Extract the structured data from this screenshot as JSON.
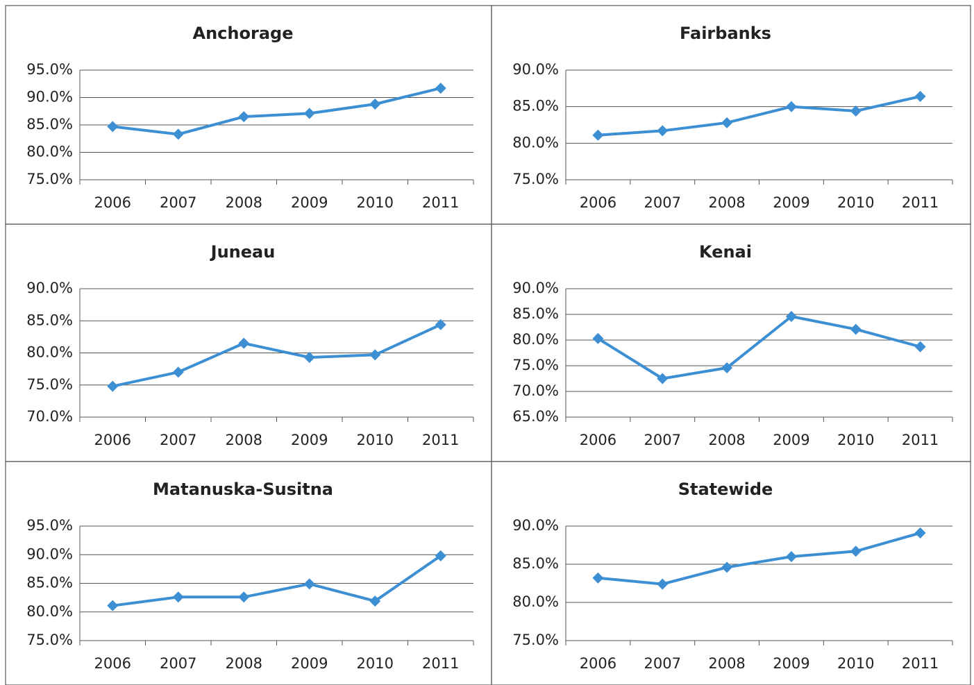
{
  "chart_data": [
    {
      "type": "line",
      "title": "Anchorage",
      "categories": [
        "2006",
        "2007",
        "2008",
        "2009",
        "2010",
        "2011"
      ],
      "values": [
        84.7,
        83.3,
        86.5,
        87.1,
        88.8,
        91.7
      ],
      "color": "#3d8fd4",
      "grid": true,
      "ylim": [
        75,
        95
      ],
      "yticks": [
        {
          "value": 75,
          "label": "75.0%"
        },
        {
          "value": 80,
          "label": "80.0%"
        },
        {
          "value": 85,
          "label": "85.0%"
        },
        {
          "value": 90,
          "label": "90.0%"
        },
        {
          "value": 95,
          "label": "95.0%"
        }
      ]
    },
    {
      "type": "line",
      "title": "Fairbanks",
      "categories": [
        "2006",
        "2007",
        "2008",
        "2009",
        "2010",
        "2011"
      ],
      "values": [
        81.1,
        81.7,
        82.8,
        85.0,
        84.4,
        86.4
      ],
      "color": "#3d8fd4",
      "grid": true,
      "ylim": [
        75,
        90
      ],
      "yticks": [
        {
          "value": 75,
          "label": "75.0%"
        },
        {
          "value": 80,
          "label": "80.0%"
        },
        {
          "value": 85,
          "label": "85.0%"
        },
        {
          "value": 90,
          "label": "90.0%"
        }
      ]
    },
    {
      "type": "line",
      "title": "Juneau",
      "categories": [
        "2006",
        "2007",
        "2008",
        "2009",
        "2010",
        "2011"
      ],
      "values": [
        74.8,
        77.0,
        81.5,
        79.3,
        79.7,
        84.4
      ],
      "color": "#3d8fd4",
      "grid": true,
      "ylim": [
        70,
        90
      ],
      "yticks": [
        {
          "value": 70,
          "label": "70.0%"
        },
        {
          "value": 75,
          "label": "75.0%"
        },
        {
          "value": 80,
          "label": "80.0%"
        },
        {
          "value": 85,
          "label": "85.0%"
        },
        {
          "value": 90,
          "label": "90.0%"
        }
      ]
    },
    {
      "type": "line",
      "title": "Kenai",
      "categories": [
        "2006",
        "2007",
        "2008",
        "2009",
        "2010",
        "2011"
      ],
      "values": [
        80.3,
        72.5,
        74.6,
        84.6,
        82.1,
        78.7
      ],
      "color": "#3d8fd4",
      "grid": true,
      "ylim": [
        65,
        90
      ],
      "yticks": [
        {
          "value": 65,
          "label": "65.0%"
        },
        {
          "value": 70,
          "label": "70.0%"
        },
        {
          "value": 75,
          "label": "75.0%"
        },
        {
          "value": 80,
          "label": "80.0%"
        },
        {
          "value": 85,
          "label": "85.0%"
        },
        {
          "value": 90,
          "label": "90.0%"
        }
      ]
    },
    {
      "type": "line",
      "title": "Matanuska-Susitna",
      "categories": [
        "2006",
        "2007",
        "2008",
        "2009",
        "2010",
        "2011"
      ],
      "values": [
        81.1,
        82.6,
        82.6,
        84.9,
        81.9,
        89.8
      ],
      "color": "#3d8fd4",
      "grid": true,
      "ylim": [
        75,
        95
      ],
      "yticks": [
        {
          "value": 75,
          "label": "75.0%"
        },
        {
          "value": 80,
          "label": "80.0%"
        },
        {
          "value": 85,
          "label": "85.0%"
        },
        {
          "value": 90,
          "label": "90.0%"
        },
        {
          "value": 95,
          "label": "95.0%"
        }
      ]
    },
    {
      "type": "line",
      "title": "Statewide",
      "categories": [
        "2006",
        "2007",
        "2008",
        "2009",
        "2010",
        "2011"
      ],
      "values": [
        83.2,
        82.4,
        84.6,
        86.0,
        86.7,
        89.1
      ],
      "color": "#3d8fd4",
      "grid": true,
      "ylim": [
        75,
        90
      ],
      "yticks": [
        {
          "value": 75,
          "label": "75.0%"
        },
        {
          "value": 80,
          "label": "80.0%"
        },
        {
          "value": 85,
          "label": "85.0%"
        },
        {
          "value": 90,
          "label": "90.0%"
        }
      ]
    }
  ]
}
